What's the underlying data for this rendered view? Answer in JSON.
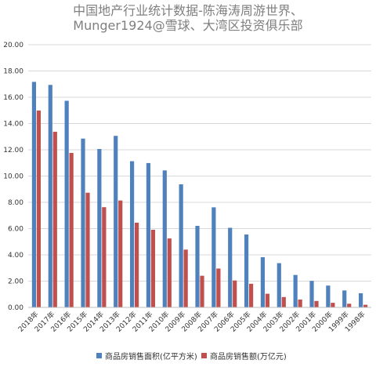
{
  "chart_data": {
    "type": "bar",
    "title_lines": [
      "中国地产行业统计数据-陈海涛周游世界、",
      "Munger1924@雪球、大湾区投资俱乐部"
    ],
    "categories": [
      "2018年",
      "2017年",
      "2016年",
      "2015年",
      "2014年",
      "2013年",
      "2012年",
      "2011年",
      "2010年",
      "2009年",
      "2008年",
      "2007年",
      "2006年",
      "2005年",
      "2004年",
      "2003年",
      "2002年",
      "2001年",
      "2000年",
      "1999年",
      "1998年"
    ],
    "series": [
      {
        "name": "商品房销售面积(亿平方米)",
        "color": "#4f81bd",
        "values": [
          17.17,
          16.94,
          15.73,
          12.85,
          12.06,
          13.06,
          11.13,
          10.99,
          10.43,
          9.37,
          6.21,
          7.62,
          6.06,
          5.55,
          3.82,
          3.37,
          2.47,
          2.02,
          1.66,
          1.29,
          1.08
        ]
      },
      {
        "name": "商品房销售额(万亿元)",
        "color": "#c0504d",
        "values": [
          14.99,
          13.37,
          11.76,
          8.73,
          7.63,
          8.14,
          6.45,
          5.91,
          5.25,
          4.4,
          2.41,
          2.96,
          2.05,
          1.8,
          1.04,
          0.79,
          0.6,
          0.49,
          0.35,
          0.28,
          0.2
        ]
      }
    ],
    "yticks": [
      "0.00",
      "2.00",
      "4.00",
      "6.00",
      "8.00",
      "10.00",
      "12.00",
      "14.00",
      "16.00",
      "18.00",
      "20.00"
    ],
    "ylim": [
      0,
      20
    ],
    "grid": true,
    "legend_position": "bottom"
  }
}
